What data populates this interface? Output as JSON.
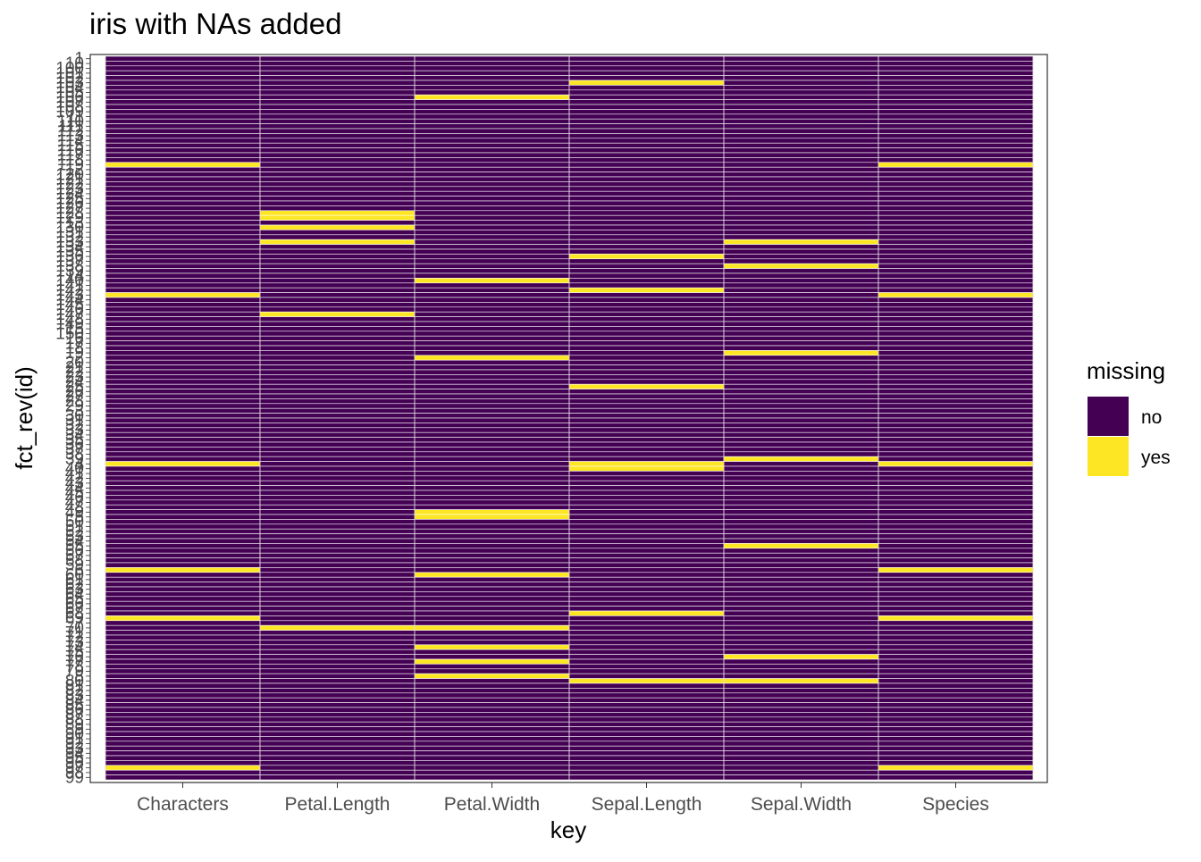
{
  "chart_data": {
    "type": "heatmap",
    "title": "iris with NAs added",
    "xlabel": "key",
    "ylabel": "fct_rev(id)",
    "categories": [
      "Characters",
      "Petal.Length",
      "Petal.Width",
      "Sepal.Length",
      "Sepal.Width",
      "Species"
    ],
    "row_count": 150,
    "row_order_top_to_bottom": [
      "1",
      "10",
      "100",
      "101",
      "102",
      "103",
      "104",
      "105",
      "106",
      "107",
      "108",
      "109",
      "11",
      "110",
      "111",
      "112",
      "113",
      "114",
      "115",
      "116",
      "117",
      "118",
      "119",
      "12",
      "120",
      "121",
      "122",
      "123",
      "124",
      "125",
      "126",
      "127",
      "128",
      "129",
      "13",
      "130",
      "131",
      "132",
      "133",
      "134",
      "135",
      "136",
      "137",
      "138",
      "139",
      "14",
      "140",
      "141",
      "142",
      "143",
      "144",
      "145",
      "146",
      "147",
      "148",
      "149",
      "15",
      "150",
      "16",
      "17",
      "18",
      "19",
      "2",
      "20",
      "21",
      "22",
      "23",
      "24",
      "25",
      "26",
      "27",
      "28",
      "29",
      "3",
      "30",
      "31",
      "32",
      "33",
      "34",
      "35",
      "36",
      "37",
      "38",
      "39",
      "4",
      "40",
      "41",
      "42",
      "43",
      "44",
      "45",
      "46",
      "47",
      "48",
      "49",
      "5",
      "50",
      "51",
      "52",
      "53",
      "54",
      "55",
      "56",
      "57",
      "58",
      "59",
      "6",
      "60",
      "61",
      "62",
      "63",
      "64",
      "65",
      "66",
      "67",
      "68",
      "69",
      "7",
      "70",
      "71",
      "72",
      "73",
      "74",
      "75",
      "76",
      "77",
      "78",
      "79",
      "8",
      "80",
      "81",
      "82",
      "83",
      "84",
      "85",
      "86",
      "87",
      "88",
      "89",
      "9",
      "90",
      "91",
      "92",
      "93",
      "94",
      "95",
      "96",
      "97",
      "98",
      "99"
    ],
    "missing_rows_by_key": {
      "Characters": [
        "119",
        "143",
        "4",
        "6",
        "69",
        "97"
      ],
      "Petal.Length": [
        "128",
        "129",
        "130",
        "133",
        "147",
        "70"
      ],
      "Petal.Width": [
        "106",
        "140",
        "2",
        "49",
        "5",
        "60",
        "70",
        "74",
        "77",
        "8"
      ],
      "Sepal.Length": [
        "103",
        "136",
        "142",
        "25",
        "4",
        "40",
        "68",
        "80"
      ],
      "Sepal.Width": [
        "133",
        "138",
        "19",
        "39",
        "55",
        "76",
        "80"
      ],
      "Species": [
        "119",
        "143",
        "4",
        "6",
        "69",
        "97"
      ]
    },
    "legend": {
      "title": "missing",
      "placement": "right",
      "items": [
        {
          "label": "no",
          "color": "#440154"
        },
        {
          "label": "yes",
          "color": "#FDE725"
        }
      ]
    },
    "colors": {
      "no": "#440154",
      "yes": "#FDE725"
    }
  }
}
